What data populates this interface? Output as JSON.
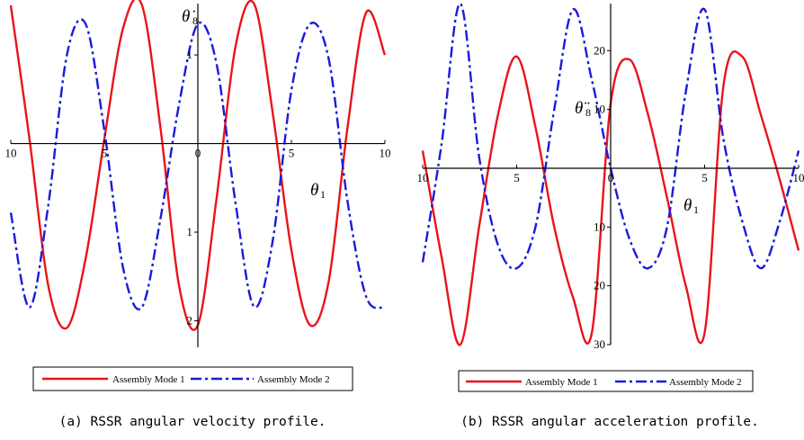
{
  "chart_data": [
    {
      "type": "line",
      "caption": "(a) RSSR angular velocity profile.",
      "xlabel": "θ",
      "xlabel_sub": "1",
      "ylabel": "θ̇",
      "ylabel_sub": "8",
      "xlim": [
        -10,
        10
      ],
      "ylim": [
        -2.3,
        1.58
      ],
      "x_ticks": [
        {
          "value": -10,
          "label": "10"
        },
        {
          "value": -5,
          "label": "5"
        },
        {
          "value": 0,
          "label": "0"
        },
        {
          "value": 5,
          "label": "5"
        },
        {
          "value": 10,
          "label": "10"
        }
      ],
      "y_ticks": [
        {
          "value": 1,
          "label": "1"
        },
        {
          "value": -1,
          "label": "1"
        },
        {
          "value": -2,
          "label": "2"
        }
      ],
      "series": [
        {
          "name": "Assembly Mode 1",
          "color": "#e8141a",
          "style": "solid",
          "x": [
            -10,
            -9,
            -8,
            -7,
            -6,
            -5,
            -4,
            -3,
            -2,
            -1,
            0,
            1,
            2,
            3,
            4,
            5,
            6,
            7,
            8,
            9,
            10
          ],
          "y": [
            1.56,
            0.05,
            -1.6,
            -2.08,
            -1.3,
            0.05,
            1.3,
            1.57,
            0.18,
            -1.61,
            -2.05,
            -0.62,
            1.08,
            1.58,
            0.35,
            -1.2,
            -2.05,
            -1.55,
            0.18,
            1.48,
            1.0
          ]
        },
        {
          "name": "Assembly Mode 2",
          "color": "#1a1adc",
          "style": "dashdot",
          "x": [
            -10,
            -9,
            -8,
            -7,
            -6,
            -5,
            -4,
            -3,
            -2,
            -1,
            0,
            1,
            2,
            3,
            4,
            5,
            6,
            7,
            8,
            9,
            10
          ],
          "y": [
            -0.78,
            -1.85,
            -0.7,
            1.0,
            1.35,
            0.15,
            -1.4,
            -1.85,
            -0.85,
            0.45,
            1.35,
            0.9,
            -0.65,
            -1.84,
            -1.1,
            0.6,
            1.35,
            0.95,
            -0.65,
            -1.73,
            -1.85
          ]
        }
      ],
      "legend": "bottom"
    },
    {
      "type": "line",
      "caption": "(b) RSSR angular acceleration profile.",
      "xlabel": "θ",
      "xlabel_sub": "1",
      "ylabel": "θ̈",
      "ylabel_sub": "8",
      "xlim": [
        -10,
        10
      ],
      "ylim": [
        -30,
        28
      ],
      "x_ticks": [
        {
          "value": -10,
          "label": "10"
        },
        {
          "value": -5,
          "label": "5"
        },
        {
          "value": 0,
          "label": "0"
        },
        {
          "value": 5,
          "label": "5"
        },
        {
          "value": 10,
          "label": "10"
        }
      ],
      "y_ticks": [
        {
          "value": 20,
          "label": "20"
        },
        {
          "value": 10,
          "label": "10"
        },
        {
          "value": -10,
          "label": "10"
        },
        {
          "value": -20,
          "label": "20"
        },
        {
          "value": -30,
          "label": "30"
        }
      ],
      "series": [
        {
          "name": "Assembly Mode 1",
          "color": "#e8141a",
          "style": "solid",
          "x": [
            -10,
            -9,
            -8,
            -7,
            -6,
            -5,
            -4,
            -3,
            -2,
            -1,
            0,
            1,
            2,
            3,
            4,
            5,
            6,
            7,
            8,
            9,
            10
          ],
          "y": [
            3,
            -15,
            -30,
            -10,
            9,
            19,
            7,
            -10,
            -22,
            -28,
            11,
            18.5,
            9,
            -5,
            -20,
            -28,
            14,
            19,
            9,
            -2,
            -14
          ]
        },
        {
          "name": "Assembly Mode 2",
          "color": "#1a1adc",
          "style": "dashdot",
          "x": [
            -10,
            -9,
            -8,
            -7,
            -6,
            -5,
            -4,
            -3,
            -2,
            -1,
            0,
            1,
            2,
            3,
            4,
            5,
            6,
            7,
            8,
            9,
            10
          ],
          "y": [
            -16,
            4,
            28,
            2,
            -13,
            -17,
            -10,
            10,
            27,
            15,
            0,
            -12,
            -17,
            -10,
            13,
            27,
            5,
            -9,
            -17,
            -9,
            3
          ]
        }
      ],
      "legend": "bottom"
    }
  ]
}
